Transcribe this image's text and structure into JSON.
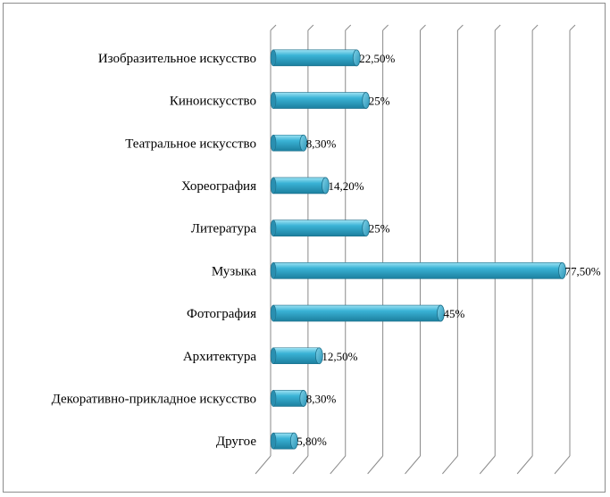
{
  "chart_data": {
    "type": "bar",
    "orientation": "horizontal",
    "title": "",
    "xlabel": "",
    "ylabel": "",
    "xlim": [
      0,
      80
    ],
    "grid": true,
    "legend": "none",
    "bar_color": "#3aaecf",
    "categories": [
      "Изобразительное искусство",
      "Киноискусство",
      "Театральное искусство",
      "Хореография",
      "Литература",
      "Музыка",
      "Фотография",
      "Архитектура",
      "Декоративно-прикладное искусство",
      "Другое"
    ],
    "values": [
      22.5,
      25,
      8.3,
      14.2,
      25,
      77.5,
      45,
      12.5,
      8.3,
      5.8
    ],
    "value_labels": [
      "22,50%",
      "25%",
      "8,30%",
      "14,20%",
      "25%",
      "77,50%",
      "45%",
      "12,50%",
      "8,30%",
      "5,80%"
    ]
  }
}
